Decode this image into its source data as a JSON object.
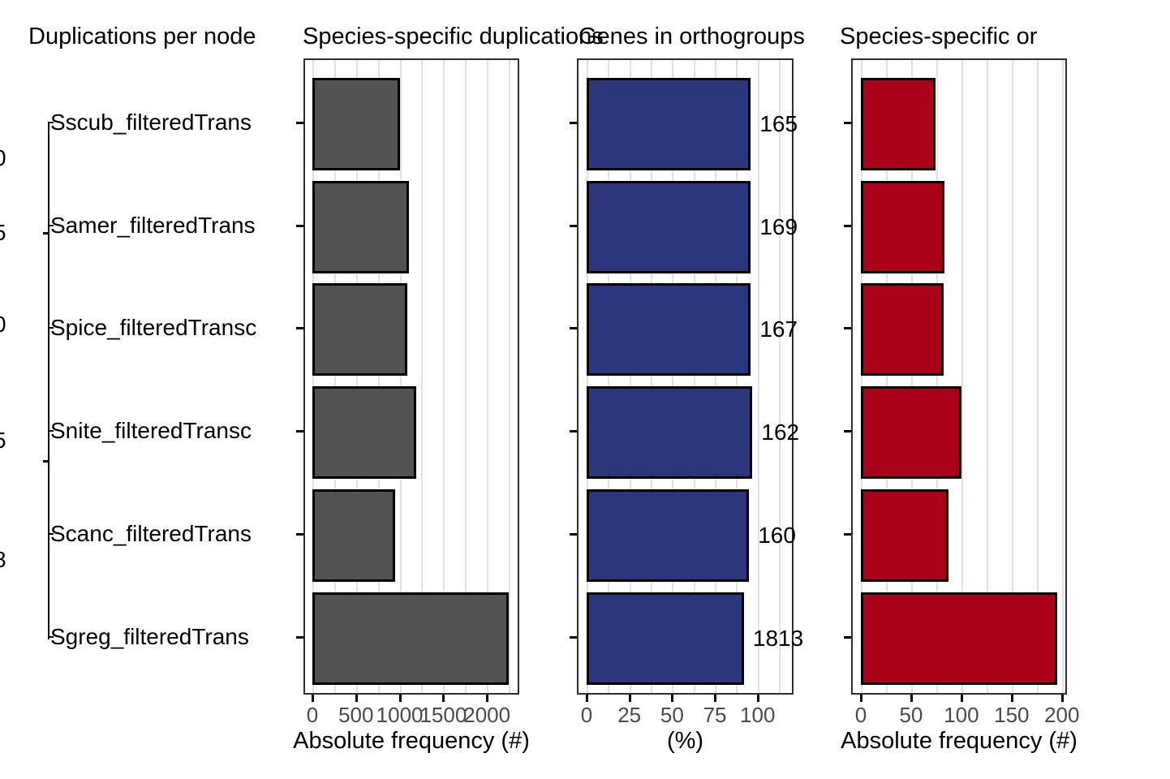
{
  "figure": {
    "background": "#ffffff",
    "titles": [
      {
        "text": "Duplications per node"
      },
      {
        "text": "Species-specific duplications"
      },
      {
        "text": "Genes in orthogroups"
      },
      {
        "text": "Species-specific or"
      }
    ]
  },
  "tree": {
    "species": [
      "Sscub_filteredTrans",
      "Samer_filteredTrans",
      "Spice_filteredTransc",
      "Snite_filteredTransc",
      "Scanc_filteredTrans",
      "Sgreg_filteredTrans"
    ],
    "clipped_node_labels": [
      "0",
      "5",
      "0",
      "5",
      "8"
    ]
  },
  "colors": {
    "bar_gray": "#535353",
    "bar_blue": "#2c367c",
    "bar_red": "#aa0019",
    "bar_border": "#000000",
    "panel_border": "#2f2f2f",
    "gridline": "#e2e2e2",
    "tick_label": "#4a4a4a"
  },
  "chart_data": [
    {
      "type": "bar",
      "orientation": "horizontal",
      "title": "Species-specific duplications",
      "categories": [
        "Sscub_filteredTrans",
        "Samer_filteredTrans",
        "Spice_filteredTransc",
        "Snite_filteredTransc",
        "Scanc_filteredTrans",
        "Sgreg_filteredTrans"
      ],
      "values": [
        1000,
        1110,
        1085,
        1185,
        950,
        2250
      ],
      "xlabel": "Absolute frequency (#)",
      "xticks": [
        0,
        500,
        1000,
        1500,
        2000
      ],
      "xlim": [
        0,
        2370
      ],
      "grid_step": 250,
      "grid": true,
      "bar_color": "#535353"
    },
    {
      "type": "bar",
      "orientation": "horizontal",
      "title": "Genes in orthogroups",
      "categories": [
        "Sscub_filteredTrans",
        "Samer_filteredTrans",
        "Spice_filteredTransc",
        "Snite_filteredTransc",
        "Scanc_filteredTrans",
        "Sgreg_filteredTrans"
      ],
      "values": [
        96,
        96,
        96,
        97,
        95,
        92
      ],
      "bar_labels": [
        "165",
        "169",
        "167",
        "162",
        "160",
        "1813"
      ],
      "xlabel": "(%)",
      "xticks": [
        0,
        25,
        50,
        75,
        100
      ],
      "xlim": [
        0,
        121
      ],
      "grid_step": 12.5,
      "grid": true,
      "bar_color": "#2c367c"
    },
    {
      "type": "bar",
      "orientation": "horizontal",
      "title": "Species-specific or",
      "categories": [
        "Sscub_filteredTrans",
        "Samer_filteredTrans",
        "Spice_filteredTransc",
        "Snite_filteredTransc",
        "Scanc_filteredTrans",
        "Sgreg_filteredTrans"
      ],
      "values": [
        74,
        83,
        82,
        100,
        87,
        195
      ],
      "xlabel": "Absolute frequency (#)",
      "xticks": [
        0,
        50,
        100,
        150,
        200
      ],
      "xlim": [
        0,
        205
      ],
      "grid_step": 25,
      "grid": true,
      "bar_color": "#aa0019"
    }
  ]
}
